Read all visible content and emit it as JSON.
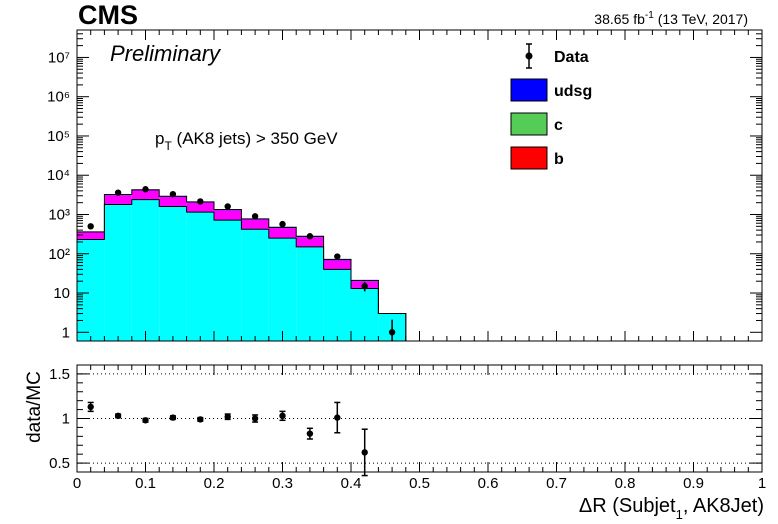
{
  "header": {
    "experiment": "CMS",
    "status": "Preliminary",
    "lumi_value": "38.65 fb",
    "lumi_exp": "-1",
    "lumi_rest": " (13 TeV, 2017)"
  },
  "annotation": {
    "pt_p": "p",
    "pt_sub": "T",
    "pt_rest": " (AK8 jets) > 350 GeV"
  },
  "axes": {
    "xlabel_main": "ΔR (Subjet",
    "xlabel_sub": "1",
    "xlabel_rest": ", AK8Jet)",
    "ratio_ylabel": "data/MC"
  },
  "chart_data": [
    {
      "type": "bar",
      "subtype": "stacked-histogram-with-data-points",
      "x_bin_edges": [
        0,
        0.04,
        0.08,
        0.12,
        0.16,
        0.2,
        0.24,
        0.28,
        0.32,
        0.36,
        0.4,
        0.44,
        0.48
      ],
      "xlim": [
        0,
        1
      ],
      "ylim": [
        0.6,
        50000000
      ],
      "yscale": "log",
      "ytick_labels": [
        "1",
        "10",
        "10²",
        "10³",
        "10⁴",
        "10⁵",
        "10⁶",
        "10⁷"
      ],
      "ytick_values": [
        1,
        10,
        100,
        1000,
        10000,
        100000,
        1000000,
        10000000
      ],
      "legend_position": "top-right",
      "legend": [
        {
          "label": "Data",
          "kind": "marker"
        },
        {
          "label": "udsg",
          "kind": "fill"
        },
        {
          "label": "c",
          "kind": "fill"
        },
        {
          "label": "b",
          "kind": "fill"
        }
      ],
      "stack": [
        {
          "component": "cyan",
          "color": "#00ffff",
          "values": [
            230,
            1800,
            2400,
            1600,
            1150,
            720,
            420,
            250,
            150,
            40,
            13,
            3
          ]
        },
        {
          "component": "magenta",
          "color": "#ff00ff",
          "values": [
            120,
            1300,
            1700,
            1200,
            850,
            560,
            320,
            200,
            115,
            28,
            7,
            0
          ]
        },
        {
          "component": "udsg",
          "color": "#0000ff",
          "values": [
            12,
            120,
            160,
            120,
            90,
            60,
            35,
            25,
            15,
            4,
            1,
            0
          ]
        }
      ],
      "data": {
        "name": "Data",
        "x": [
          0.02,
          0.06,
          0.1,
          0.14,
          0.18,
          0.22,
          0.26,
          0.3,
          0.34,
          0.38,
          0.42,
          0.46
        ],
        "y": [
          500,
          3600,
          4400,
          3300,
          2150,
          1600,
          900,
          570,
          280,
          85,
          15,
          1.0
        ],
        "yerr_up": [
          20,
          60,
          65,
          55,
          45,
          40,
          30,
          25,
          17,
          10,
          4,
          1.1
        ],
        "yerr_down": [
          20,
          60,
          65,
          55,
          45,
          40,
          30,
          25,
          17,
          10,
          4,
          0.6
        ]
      },
      "colors": {
        "data": "#000000",
        "udsg": "#0000ff",
        "c": "#55cc55",
        "b": "#ff0000"
      }
    },
    {
      "type": "scatter",
      "subtype": "ratio-panel",
      "ylabel": "data/MC",
      "xlim": [
        0,
        1
      ],
      "ylim": [
        0.4,
        1.6
      ],
      "ytick_labels": [
        "0.5",
        "1",
        "1.5"
      ],
      "ytick_values": [
        0.5,
        1,
        1.5
      ],
      "reference_lines": [
        0.5,
        1,
        1.5
      ],
      "xtick_labels": [
        "0",
        "0.1",
        "0.2",
        "0.3",
        "0.4",
        "0.5",
        "0.6",
        "0.7",
        "0.8",
        "0.9",
        "1"
      ],
      "xtick_values": [
        0,
        0.1,
        0.2,
        0.3,
        0.4,
        0.5,
        0.6,
        0.7,
        0.8,
        0.9,
        1
      ],
      "x": [
        0.02,
        0.06,
        0.1,
        0.14,
        0.18,
        0.22,
        0.26,
        0.3,
        0.34,
        0.38,
        0.42
      ],
      "y": [
        1.13,
        1.03,
        0.98,
        1.01,
        0.99,
        1.02,
        1.0,
        1.03,
        0.83,
        1.01,
        0.62
      ],
      "yerr": [
        0.05,
        0.02,
        0.02,
        0.02,
        0.02,
        0.03,
        0.04,
        0.05,
        0.06,
        0.17,
        0.26
      ]
    }
  ]
}
